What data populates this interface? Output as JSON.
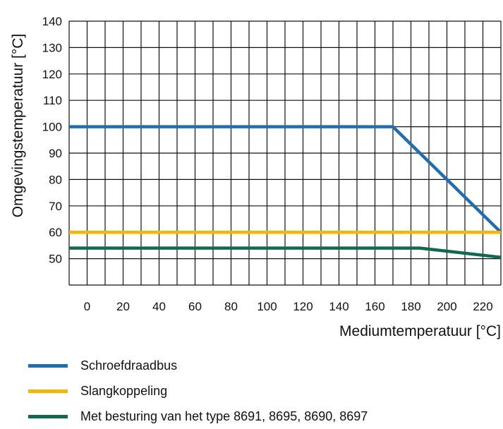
{
  "chart_data": {
    "type": "line",
    "title": "",
    "xlabel": "Mediumtemperatuur [°C]",
    "ylabel": "Omgevingstemperatuur [°C]",
    "xlim": [
      -10,
      230
    ],
    "ylim": [
      40,
      140
    ],
    "xticks": [
      0,
      20,
      40,
      60,
      80,
      100,
      120,
      140,
      160,
      180,
      200,
      220
    ],
    "yticks": [
      50,
      60,
      70,
      80,
      90,
      100,
      110,
      120,
      130,
      140
    ],
    "grid": true,
    "series": [
      {
        "name": "Schroefdraadbus",
        "color": "#1f6eb4",
        "x": [
          -10,
          170,
          230
        ],
        "y": [
          100,
          100,
          60
        ]
      },
      {
        "name": "Slangkoppeling",
        "color": "#f7b500",
        "x": [
          -10,
          230
        ],
        "y": [
          60,
          60
        ]
      },
      {
        "name": "Met besturing van het type 8691, 8695, 8690, 8697",
        "color": "#0e6b50",
        "x": [
          -10,
          185,
          230
        ],
        "y": [
          54,
          54,
          50.5
        ]
      }
    ]
  }
}
